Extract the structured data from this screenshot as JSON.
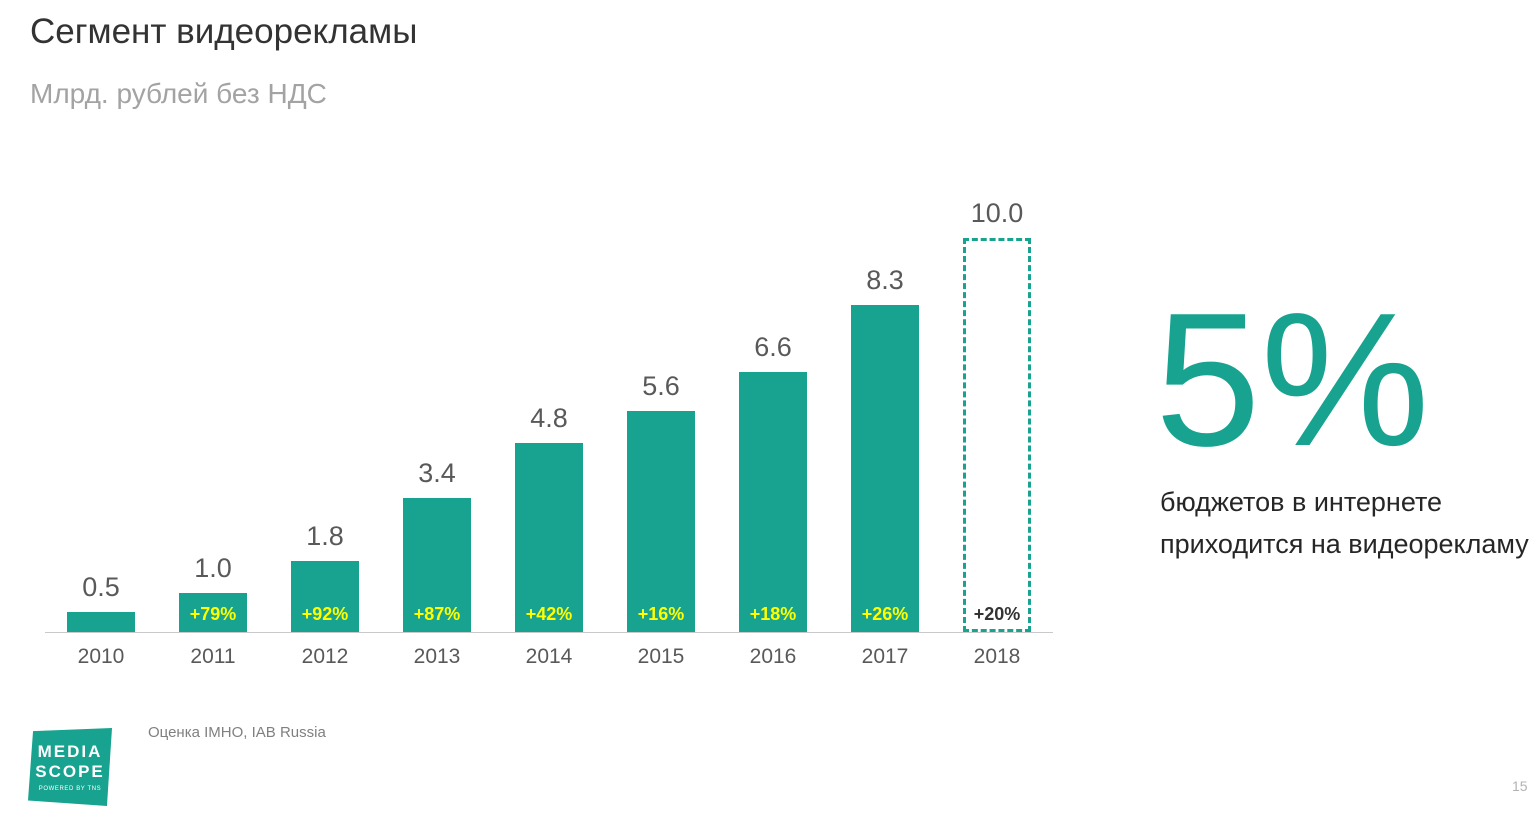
{
  "header": {
    "title": "Сегмент видеорекламы",
    "subtitle": "Млрд. рублей без НДС"
  },
  "chart_data": {
    "type": "bar",
    "title": "Сегмент видеорекламы",
    "ylabel": "Млрд. рублей без НДС",
    "xlabel": "",
    "categories": [
      "2010",
      "2011",
      "2012",
      "2013",
      "2014",
      "2015",
      "2016",
      "2017",
      "2018"
    ],
    "values": [
      0.5,
      1.0,
      1.8,
      3.4,
      4.8,
      5.6,
      6.6,
      8.3,
      10.0
    ],
    "value_labels": [
      "0.5",
      "1.0",
      "1.8",
      "3.4",
      "4.8",
      "5.6",
      "6.6",
      "8.3",
      "10.0"
    ],
    "growth_labels": [
      "",
      "+79%",
      "+92%",
      "+87%",
      "+42%",
      "+16%",
      "+18%",
      "+26%",
      "+20%"
    ],
    "forecast_index": 8,
    "ylim": [
      0,
      10.5
    ],
    "grid": false,
    "legend": "none",
    "bar_color": "#17A38F",
    "growth_label_color": "#FFFF00",
    "forecast_growth_label_color": "#333333",
    "axis_label_color": "#595959"
  },
  "aside": {
    "stat": "5%",
    "line1": "бюджетов в интернете",
    "line2": "приходится на видеорекламу"
  },
  "footer": {
    "source": "Оценка IMHO, IAB Russia",
    "page_number": "15",
    "logo": {
      "line1": "MEDIA",
      "line2": "SCOPE",
      "line3": "POWERED BY TNS"
    }
  },
  "colors": {
    "teal": "#17A38F",
    "yellow": "#FFFF00",
    "title": "#333333",
    "subtitle": "#A3A3A3",
    "axis_line": "#C9C9C9"
  }
}
